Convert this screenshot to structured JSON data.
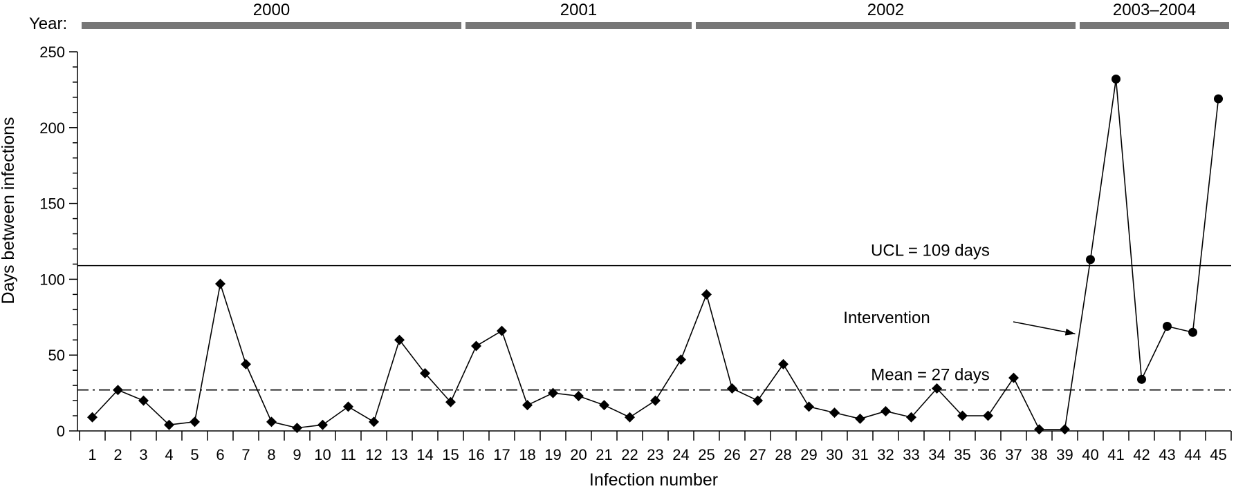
{
  "chart_data": {
    "type": "line",
    "xlabel": "Infection number",
    "ylabel": "Days between infections",
    "ylim": [
      0,
      250
    ],
    "yticks": [
      0,
      50,
      100,
      150,
      200,
      250
    ],
    "x": [
      1,
      2,
      3,
      4,
      5,
      6,
      7,
      8,
      9,
      10,
      11,
      12,
      13,
      14,
      15,
      16,
      17,
      18,
      19,
      20,
      21,
      22,
      23,
      24,
      25,
      26,
      27,
      28,
      29,
      30,
      31,
      32,
      33,
      34,
      35,
      36,
      37,
      38,
      39,
      40,
      41,
      42,
      43,
      44,
      45
    ],
    "series": [
      {
        "marker": "diamond",
        "x": [
          1,
          2,
          3,
          4,
          5,
          6,
          7,
          8,
          9,
          10,
          11,
          12,
          13,
          14,
          15,
          16,
          17,
          18,
          19,
          20,
          21,
          22,
          23,
          24,
          25,
          26,
          27,
          28,
          29,
          30,
          31,
          32,
          33,
          34,
          35,
          36,
          37,
          38,
          39
        ],
        "values": [
          9,
          27,
          20,
          4,
          6,
          97,
          44,
          6,
          2,
          4,
          16,
          6,
          60,
          38,
          19,
          56,
          66,
          17,
          25,
          23,
          17,
          9,
          20,
          47,
          90,
          28,
          20,
          44,
          16,
          12,
          8,
          13,
          9,
          28,
          10,
          10,
          35,
          1,
          1
        ]
      },
      {
        "marker": "circle",
        "x": [
          40,
          41,
          42,
          43,
          44,
          45
        ],
        "values": [
          113,
          232,
          34,
          69,
          65,
          219
        ]
      }
    ],
    "reference_lines": [
      {
        "value": 109,
        "style": "solid",
        "label": "UCL = 109 days"
      },
      {
        "value": 27,
        "style": "dash-dot",
        "label": "Mean = 27 days"
      }
    ],
    "annotations": [
      {
        "text": "Intervention",
        "arrow_to_x": 40
      }
    ],
    "year_bands": {
      "label": "Year:",
      "bands": [
        {
          "label": "2000",
          "from": 1,
          "to": 15
        },
        {
          "label": "2001",
          "from": 16,
          "to": 24
        },
        {
          "label": "2002",
          "from": 25,
          "to": 39
        },
        {
          "label": "2003–2004",
          "from": 40,
          "to": 45
        }
      ]
    },
    "grid": false,
    "legend": "none",
    "colors": {
      "line": "#000000",
      "band": "#777777"
    }
  }
}
